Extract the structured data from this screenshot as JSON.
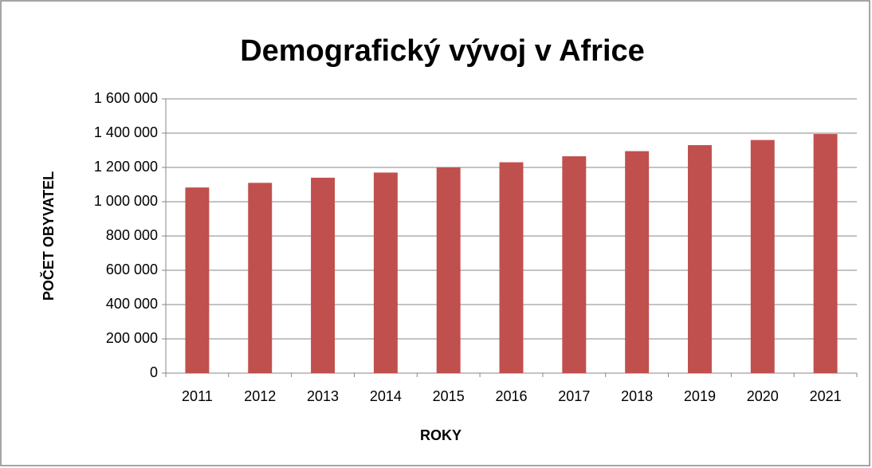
{
  "chart_data": {
    "type": "bar",
    "title": "Demografický vývoj v Africe",
    "x_label": "ROKY",
    "y_label": "POČET OBYVATEL",
    "categories": [
      "2011",
      "2012",
      "2013",
      "2014",
      "2015",
      "2016",
      "2017",
      "2018",
      "2019",
      "2020",
      "2021"
    ],
    "values": [
      1083000,
      1110000,
      1140000,
      1170000,
      1200000,
      1230000,
      1265000,
      1295000,
      1330000,
      1360000,
      1395000
    ],
    "color": "#c0504d",
    "ylim": [
      0,
      1600000
    ],
    "yticks": [
      0,
      {
        "value": 200000,
        "label": "200 000"
      },
      {
        "value": 400000,
        "label": "400 000"
      },
      {
        "value": 600000,
        "label": "600 000"
      },
      {
        "value": 800000,
        "label": "800 000"
      },
      {
        "value": 1000000,
        "label": "1 000 000"
      },
      {
        "value": 1200000,
        "label": "1 200 000"
      },
      {
        "value": 1400000,
        "label": "1 400 000"
      },
      {
        "value": 1600000,
        "label": "1 600 000"
      }
    ],
    "grid": true
  }
}
